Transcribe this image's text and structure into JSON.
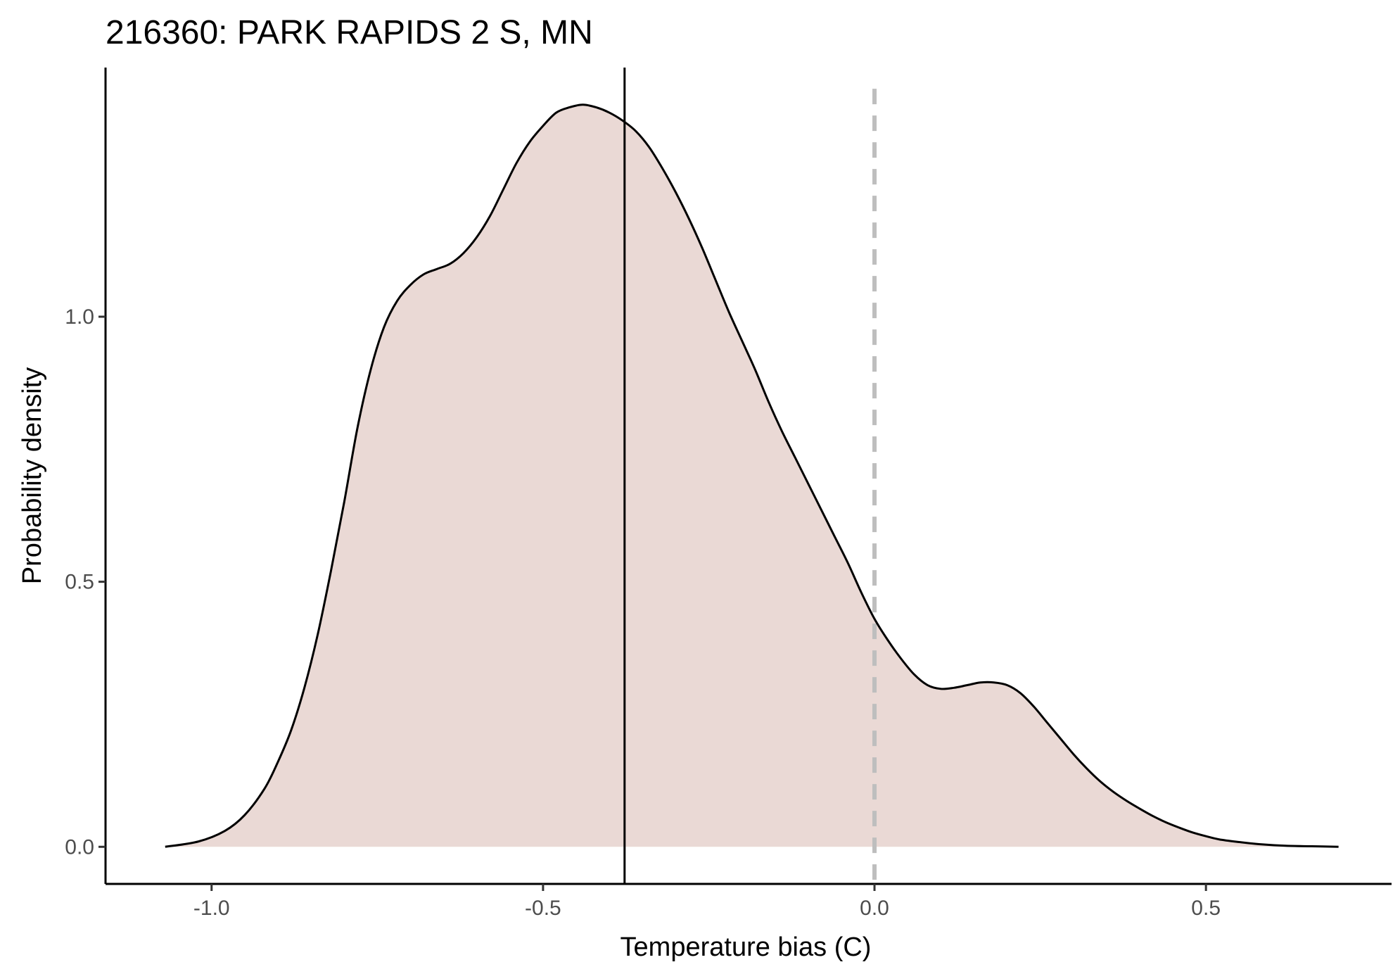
{
  "chart_data": {
    "type": "area",
    "title": "216360: PARK RAPIDS 2 S, MN",
    "xlabel": "Temperature bias (C)",
    "ylabel": "Probability density",
    "xlim": [
      -1.16,
      0.78
    ],
    "ylim": [
      -0.07,
      1.47
    ],
    "x_ticks": [
      -1.0,
      -0.5,
      0.0,
      0.5
    ],
    "x_tick_labels": [
      "-1.0",
      "-0.5",
      "0.0",
      "0.5"
    ],
    "y_ticks": [
      0.0,
      0.5,
      1.0
    ],
    "y_tick_labels": [
      "0.0",
      "0.5",
      "1.0"
    ],
    "grid": false,
    "legend": "none",
    "fill_color": "#ead9d5",
    "line_color": "#000000",
    "series": [
      {
        "x": [
          -1.07,
          -1.02,
          -0.98,
          -0.95,
          -0.92,
          -0.9,
          -0.88,
          -0.86,
          -0.84,
          -0.82,
          -0.8,
          -0.78,
          -0.76,
          -0.74,
          -0.72,
          -0.7,
          -0.68,
          -0.66,
          -0.64,
          -0.62,
          -0.6,
          -0.58,
          -0.56,
          -0.54,
          -0.52,
          -0.5,
          -0.48,
          -0.46,
          -0.44,
          -0.42,
          -0.4,
          -0.38,
          -0.36,
          -0.34,
          -0.32,
          -0.3,
          -0.28,
          -0.26,
          -0.24,
          -0.22,
          -0.2,
          -0.18,
          -0.16,
          -0.14,
          -0.12,
          -0.1,
          -0.08,
          -0.06,
          -0.04,
          -0.02,
          0.0,
          0.02,
          0.04,
          0.06,
          0.08,
          0.1,
          0.12,
          0.14,
          0.16,
          0.18,
          0.2,
          0.22,
          0.24,
          0.26,
          0.28,
          0.3,
          0.32,
          0.34,
          0.36,
          0.38,
          0.4,
          0.42,
          0.44,
          0.46,
          0.48,
          0.5,
          0.52,
          0.55,
          0.58,
          0.62,
          0.66,
          0.7
        ],
        "y": [
          0.0,
          0.01,
          0.03,
          0.06,
          0.11,
          0.16,
          0.22,
          0.3,
          0.4,
          0.52,
          0.65,
          0.79,
          0.9,
          0.98,
          1.03,
          1.06,
          1.08,
          1.09,
          1.1,
          1.12,
          1.15,
          1.19,
          1.24,
          1.29,
          1.33,
          1.36,
          1.385,
          1.395,
          1.4,
          1.395,
          1.385,
          1.37,
          1.35,
          1.32,
          1.28,
          1.235,
          1.185,
          1.13,
          1.07,
          1.01,
          0.955,
          0.9,
          0.84,
          0.785,
          0.735,
          0.685,
          0.635,
          0.585,
          0.535,
          0.48,
          0.43,
          0.39,
          0.355,
          0.325,
          0.305,
          0.298,
          0.3,
          0.305,
          0.31,
          0.31,
          0.305,
          0.29,
          0.265,
          0.235,
          0.205,
          0.175,
          0.148,
          0.124,
          0.104,
          0.087,
          0.072,
          0.058,
          0.046,
          0.036,
          0.027,
          0.02,
          0.014,
          0.009,
          0.005,
          0.002,
          0.001,
          0.0
        ]
      }
    ],
    "reference_lines": [
      {
        "x": -0.377,
        "style": "solid",
        "color": "#000000"
      },
      {
        "x": 0.0,
        "style": "dashed",
        "color": "#bebebe"
      }
    ]
  }
}
